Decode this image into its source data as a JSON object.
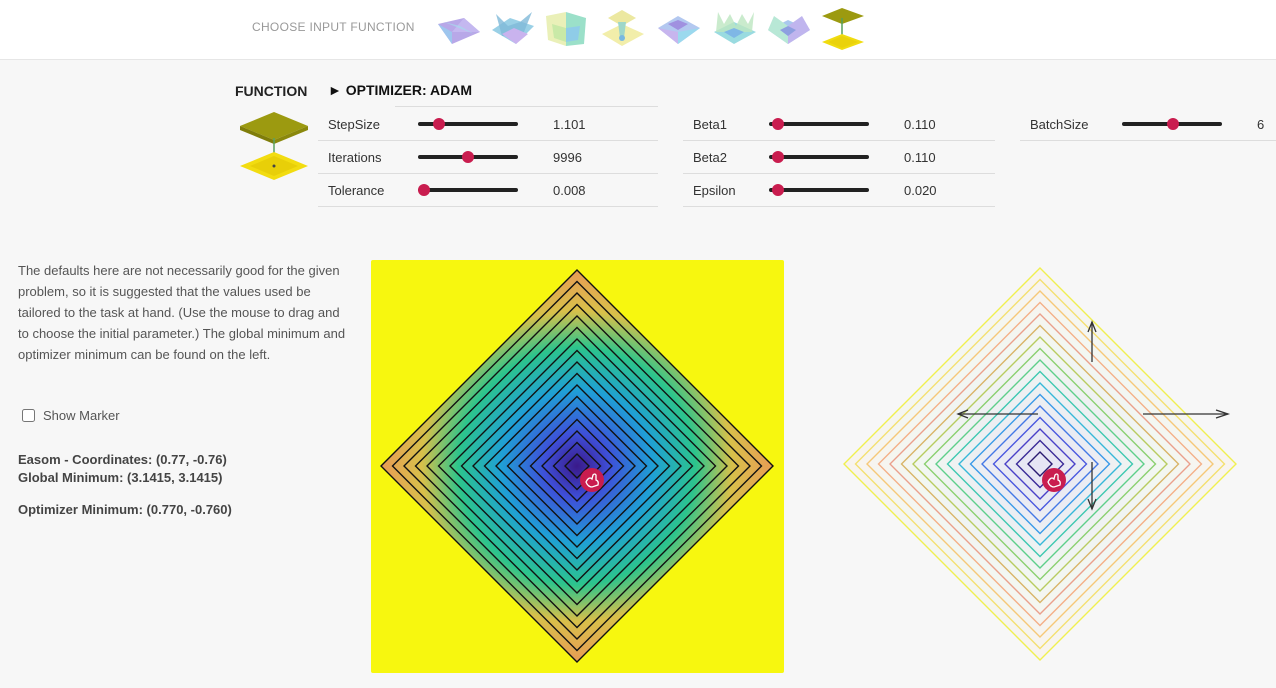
{
  "header": {
    "choose_label": "CHOOSE INPUT FUNCTION",
    "thumbnails": [
      {
        "name": "function-thumb-1",
        "icon": "surface-saddle-icon",
        "selected": false
      },
      {
        "name": "function-thumb-2",
        "icon": "surface-wave-icon",
        "selected": false
      },
      {
        "name": "function-thumb-3",
        "icon": "surface-fold-icon",
        "selected": false
      },
      {
        "name": "function-thumb-4",
        "icon": "surface-cone-icon",
        "selected": false
      },
      {
        "name": "function-thumb-5",
        "icon": "surface-bowl-icon",
        "selected": false
      },
      {
        "name": "function-thumb-6",
        "icon": "surface-ripple-icon",
        "selected": false
      },
      {
        "name": "function-thumb-7",
        "icon": "surface-valley-icon",
        "selected": false
      },
      {
        "name": "function-thumb-8",
        "icon": "surface-easom-icon",
        "selected": true
      }
    ]
  },
  "function": {
    "label": "FUNCTION",
    "icon": "easom-surface-icon"
  },
  "optimizer": {
    "title": "► OPTIMIZER: ADAM",
    "params": [
      {
        "key": "stepsize",
        "label": "StepSize",
        "value": "1.101",
        "slider_fraction": 0.21
      },
      {
        "key": "iterations",
        "label": "Iterations",
        "value": "9996",
        "slider_fraction": 0.5
      },
      {
        "key": "tolerance",
        "label": "Tolerance",
        "value": "0.008",
        "slider_fraction": 0.06
      },
      {
        "key": "beta1",
        "label": "Beta1",
        "value": "0.110",
        "slider_fraction": 0.09
      },
      {
        "key": "beta2",
        "label": "Beta2",
        "value": "0.110",
        "slider_fraction": 0.09
      },
      {
        "key": "epsilon",
        "label": "Epsilon",
        "value": "0.020",
        "slider_fraction": 0.09
      },
      {
        "key": "batchsize",
        "label": "BatchSize",
        "value": "6",
        "slider_fraction": 0.51
      }
    ]
  },
  "info": {
    "description": "The defaults here are not necessarily good for the given problem, so it is suggested that the values used be tailored to the task at hand. (Use the mouse to drag and to choose the initial parameter.) The global minimum and optimizer minimum can be found on the left.",
    "show_marker_label": "Show Marker",
    "show_marker_checked": false,
    "coordinates": "Easom - Coordinates: (0.77, -0.76)",
    "global_minimum": "Global Minimum: (3.1415, 3.1415)",
    "optimizer_minimum": "Optimizer Minimum: (0.770, -0.760)"
  },
  "plots": {
    "background_color": "#f7f70f",
    "marker_color": "#c91d4f",
    "marker_icon": "drag-hand-icon",
    "arrow_icon": "gradient-arrow-icon"
  }
}
